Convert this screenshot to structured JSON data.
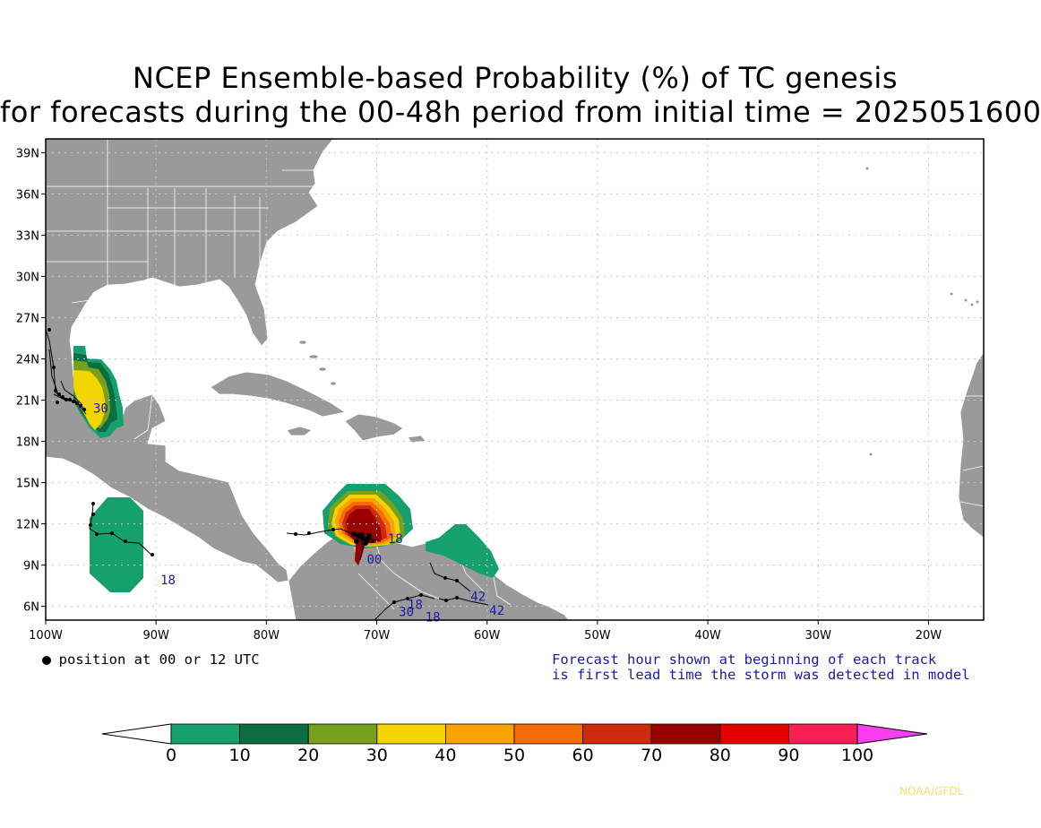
{
  "title_line1": "NCEP Ensemble-based Probability (%) of TC genesis",
  "title_line2": "for forecasts during the 00-48h period from initial time = 2025051600",
  "lat_labels": [
    "39N",
    "36N",
    "33N",
    "30N",
    "27N",
    "24N",
    "21N",
    "18N",
    "15N",
    "12N",
    "9N",
    "6N"
  ],
  "lon_labels": [
    "100W",
    "90W",
    "80W",
    "70W",
    "60W",
    "50W",
    "40W",
    "30W",
    "20W"
  ],
  "legend_marker_text": "= position at 00 or 12 UTC",
  "forecast_note_line1": "Forecast hour shown at beginning of each track",
  "forecast_note_line2": "is first lead time the storm was detected in model",
  "credit": "NOAA/GFDL",
  "colorbar": {
    "labels": [
      "0",
      "10",
      "20",
      "30",
      "40",
      "50",
      "60",
      "70",
      "80",
      "90",
      "100"
    ],
    "colors": [
      "#15a06e",
      "#0b6e43",
      "#76a01d",
      "#f2d500",
      "#f8a300",
      "#f66b05",
      "#cd2b0e",
      "#9b0000",
      "#e40000",
      "#f81f55"
    ],
    "under_color": "#ffffff",
    "over_color": "#f83ef0"
  },
  "track_labels": [
    {
      "text": "30",
      "lon": -95.7,
      "lat": 20.1
    },
    {
      "text": "18",
      "lon": -89.6,
      "lat": 7.6
    },
    {
      "text": "00",
      "lon": -70.9,
      "lat": 9.1
    },
    {
      "text": "18",
      "lon": -67.2,
      "lat": 5.8
    },
    {
      "text": "30",
      "lon": -68.0,
      "lat": 5.3
    },
    {
      "text": "18",
      "lon": -65.6,
      "lat": 4.9
    },
    {
      "text": "42",
      "lon": -61.5,
      "lat": 6.4
    },
    {
      "text": "42",
      "lon": -59.8,
      "lat": 5.4
    },
    {
      "text": "18",
      "lon": -69.0,
      "lat": 10.6
    }
  ]
}
